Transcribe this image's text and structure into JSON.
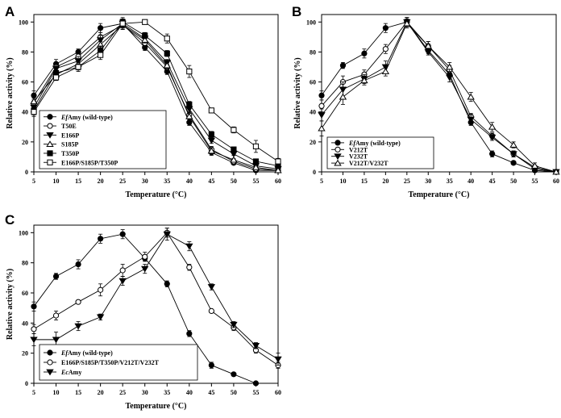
{
  "chart_data": [
    {
      "panel": "A",
      "type": "line",
      "xlabel": "Temperature (°C)",
      "ylabel": "Relative activity (%)",
      "xlim": [
        5,
        60
      ],
      "ylim": [
        0,
        105
      ],
      "x": [
        5,
        10,
        15,
        20,
        25,
        30,
        35,
        40,
        45,
        50,
        55,
        60
      ],
      "xticks": [
        "5",
        "10",
        "15",
        "20",
        "25",
        "30",
        "35",
        "40",
        "45",
        "50",
        "55",
        "60"
      ],
      "yticks": [
        "0",
        "20",
        "40",
        "60",
        "80",
        "100"
      ],
      "legend_position": "bottom-left",
      "series": [
        {
          "name_italic": "Ef",
          "name_rest": "Amy (wild-type)",
          "marker": "circle-filled",
          "values": [
            51,
            72,
            80,
            96,
            99,
            83,
            67,
            33,
            13,
            6,
            1,
            1
          ],
          "errors": [
            3,
            3,
            2,
            3,
            3,
            2,
            2,
            2,
            2,
            1,
            1,
            1
          ]
        },
        {
          "name_italic": "",
          "name_rest": "T50E",
          "marker": "circle-open",
          "values": [
            46,
            70,
            77,
            90,
            98,
            86,
            70,
            38,
            15,
            7,
            2,
            1
          ],
          "errors": [
            3,
            3,
            3,
            3,
            3,
            2,
            2,
            2,
            2,
            1,
            1,
            1
          ]
        },
        {
          "name_italic": "",
          "name_rest": "E166P",
          "marker": "triangle-down-filled",
          "values": [
            43,
            69,
            74,
            88,
            99,
            89,
            73,
            42,
            21,
            12,
            4,
            2
          ],
          "errors": [
            3,
            3,
            3,
            3,
            3,
            2,
            2,
            2,
            2,
            1,
            1,
            1
          ]
        },
        {
          "name_italic": "",
          "name_rest": "S185P",
          "marker": "triangle-up-open",
          "values": [
            47,
            65,
            72,
            85,
            98,
            88,
            71,
            37,
            14,
            8,
            3,
            1
          ],
          "errors": [
            3,
            3,
            3,
            3,
            3,
            2,
            2,
            2,
            2,
            1,
            1,
            1
          ]
        },
        {
          "name_italic": "",
          "name_rest": "T350P",
          "marker": "square-filled",
          "values": [
            41,
            66,
            70,
            81,
            100,
            91,
            79,
            45,
            25,
            15,
            7,
            4
          ],
          "errors": [
            3,
            3,
            3,
            3,
            3,
            2,
            2,
            2,
            2,
            1,
            1,
            1
          ]
        },
        {
          "name_italic": "",
          "name_rest": "E166P/S185P/T350P",
          "marker": "square-open",
          "values": [
            40,
            63,
            70,
            78,
            99,
            100,
            89,
            67,
            41,
            28,
            17,
            7
          ],
          "errors": [
            3,
            2,
            2,
            3,
            3,
            1,
            3,
            4,
            1,
            2,
            4,
            2
          ]
        }
      ]
    },
    {
      "panel": "B",
      "type": "line",
      "xlabel": "Temperature (°C)",
      "ylabel": "Relative activity (%)",
      "xlim": [
        5,
        60
      ],
      "ylim": [
        0,
        105
      ],
      "x": [
        5,
        10,
        15,
        20,
        25,
        30,
        35,
        40,
        45,
        50,
        55,
        60
      ],
      "xticks": [
        "5",
        "10",
        "15",
        "20",
        "25",
        "30",
        "35",
        "40",
        "45",
        "50",
        "55",
        "60"
      ],
      "yticks": [
        "0",
        "20",
        "40",
        "60",
        "80",
        "100"
      ],
      "legend_position": "bottom-left",
      "series": [
        {
          "name_italic": "Ef",
          "name_rest": "Amy (wild-type)",
          "marker": "circle-filled",
          "values": [
            51,
            71,
            79,
            96,
            100,
            81,
            65,
            33,
            12,
            6,
            1,
            0
          ],
          "errors": [
            3,
            2,
            3,
            3,
            3,
            2,
            2,
            2,
            2,
            1,
            1,
            0
          ]
        },
        {
          "name_italic": "",
          "name_rest": "V212T",
          "marker": "circle-open",
          "values": [
            44,
            60,
            65,
            82,
            100,
            84,
            68,
            37,
            24,
            12,
            3,
            0
          ],
          "errors": [
            4,
            4,
            3,
            3,
            3,
            3,
            3,
            2,
            2,
            2,
            1,
            0
          ]
        },
        {
          "name_italic": "",
          "name_rest": "V232T",
          "marker": "triangle-down-filled",
          "values": [
            38,
            55,
            62,
            70,
            100,
            80,
            63,
            35,
            23,
            12,
            2,
            0
          ],
          "errors": [
            4,
            5,
            3,
            4,
            3,
            2,
            3,
            3,
            2,
            2,
            1,
            0
          ]
        },
        {
          "name_italic": "",
          "name_rest": "V212T/V232T",
          "marker": "triangle-up-open",
          "values": [
            29,
            50,
            61,
            67,
            99,
            84,
            70,
            50,
            30,
            18,
            4,
            0
          ],
          "errors": [
            5,
            5,
            3,
            3,
            3,
            3,
            3,
            3,
            3,
            2,
            2,
            0
          ]
        }
      ]
    },
    {
      "panel": "C",
      "type": "line",
      "xlabel": "Temperature (°C)",
      "ylabel": "Relative activity (%)",
      "xlim": [
        5,
        60
      ],
      "ylim": [
        0,
        105
      ],
      "x": [
        5,
        10,
        15,
        20,
        25,
        30,
        35,
        40,
        45,
        50,
        55,
        60
      ],
      "xticks": [
        "5",
        "10",
        "15",
        "20",
        "25",
        "30",
        "35",
        "40",
        "45",
        "50",
        "55",
        "60"
      ],
      "yticks": [
        "0",
        "20",
        "40",
        "60",
        "80",
        "100"
      ],
      "legend_position": "bottom-left",
      "series": [
        {
          "name_italic": "Ef",
          "name_rest": "Amy (wild-type)",
          "marker": "circle-filled",
          "values": [
            51,
            71,
            79,
            96,
            99,
            83,
            66,
            33,
            12,
            6,
            0,
            null
          ],
          "errors": [
            3,
            2,
            3,
            3,
            3,
            2,
            2,
            2,
            2,
            1,
            0,
            0
          ]
        },
        {
          "name_italic": "",
          "name_rest": "E166P/S185P/T350P/V212T/V232T",
          "marker": "circle-open",
          "values": [
            36,
            45,
            54,
            62,
            75,
            84,
            100,
            77,
            48,
            37,
            22,
            12
          ],
          "errors": [
            3,
            3,
            1,
            4,
            4,
            3,
            3,
            2,
            1,
            2,
            2,
            2
          ]
        },
        {
          "name_italic": "Ec",
          "name_rest": "Amy",
          "marker": "triangle-down-filled",
          "values": [
            29,
            29,
            38,
            44,
            68,
            76,
            99,
            91,
            64,
            39,
            25,
            16
          ],
          "errors": [
            4,
            5,
            3,
            2,
            3,
            3,
            4,
            3,
            2,
            2,
            2,
            4
          ]
        }
      ]
    }
  ]
}
